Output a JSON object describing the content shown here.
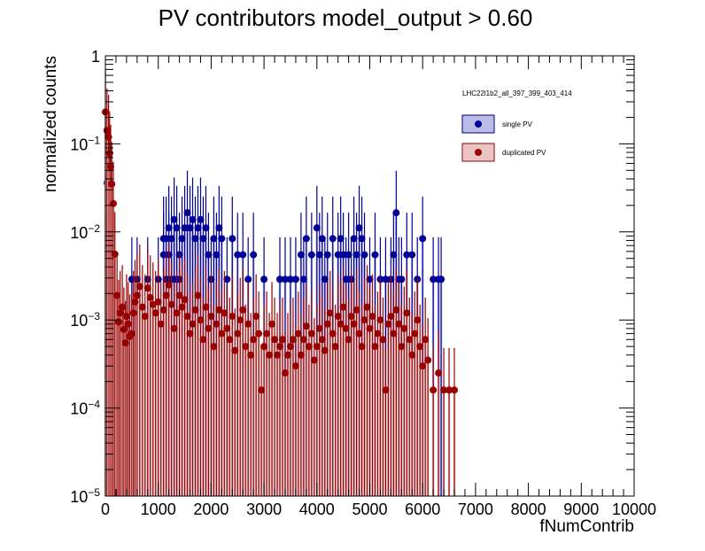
{
  "chart_data": {
    "type": "scatter",
    "title": "PV contributors  model_output > 0.60",
    "xlabel": "fNumContrib",
    "ylabel": "normalized counts",
    "xlim": [
      0,
      10000
    ],
    "ylim": [
      1e-05,
      1
    ],
    "yscale": "log",
    "grid": false,
    "legend_position": "top-right",
    "legend_header": "LHC22l1b2_all_397_399_403_414",
    "x_ticks": [
      "0",
      "1000",
      "2000",
      "3000",
      "4000",
      "5000",
      "6000",
      "7000",
      "8000",
      "9000",
      "10000"
    ],
    "y_ticks": [
      {
        "value": 1e-05,
        "base": "10",
        "exp": "−5"
      },
      {
        "value": 0.0001,
        "base": "10",
        "exp": "−4"
      },
      {
        "value": 0.001,
        "base": "10",
        "exp": "−3"
      },
      {
        "value": 0.01,
        "base": "10",
        "exp": "−2"
      },
      {
        "value": 0.1,
        "base": "10",
        "exp": "−1"
      },
      {
        "value": 1,
        "base": "1",
        "exp": ""
      }
    ],
    "series": [
      {
        "name": "single PV",
        "color": "#000099",
        "fill": "#bcbde6",
        "points": [
          [
            30,
            0.036
          ],
          [
            60,
            0.0055
          ],
          [
            80,
            0.0055
          ],
          [
            100,
            0.0029
          ],
          [
            130,
            0.0029
          ],
          [
            500,
            0.0029
          ],
          [
            600,
            0.0029
          ],
          [
            800,
            0.0029
          ],
          [
            1000,
            0.0029
          ],
          [
            1100,
            0.0055
          ],
          [
            1150,
            0.0029
          ],
          [
            1200,
            0.0055
          ],
          [
            1250,
            0.0029
          ],
          [
            1300,
            0.0029
          ],
          [
            1350,
            0.0029
          ],
          [
            1400,
            0.0029
          ],
          [
            1100,
            0.0084
          ],
          [
            1150,
            0.0084
          ],
          [
            1200,
            0.0111
          ],
          [
            1250,
            0.0084
          ],
          [
            1300,
            0.0138
          ],
          [
            1350,
            0.0111
          ],
          [
            1400,
            0.0055
          ],
          [
            1450,
            0.0084
          ],
          [
            1500,
            0.0111
          ],
          [
            1550,
            0.0165
          ],
          [
            1600,
            0.0111
          ],
          [
            1650,
            0.0138
          ],
          [
            1700,
            0.0084
          ],
          [
            1750,
            0.0111
          ],
          [
            1800,
            0.0138
          ],
          [
            1850,
            0.0084
          ],
          [
            1900,
            0.0111
          ],
          [
            1950,
            0.0055
          ],
          [
            2000,
            0.0029
          ],
          [
            2050,
            0.0084
          ],
          [
            2100,
            0.0055
          ],
          [
            2150,
            0.0111
          ],
          [
            2200,
            0.0084
          ],
          [
            2300,
            0.0029
          ],
          [
            2400,
            0.0084
          ],
          [
            2500,
            0.0055
          ],
          [
            2600,
            0.0055
          ],
          [
            2700,
            0.0029
          ],
          [
            2800,
            0.0055
          ],
          [
            3000,
            0.0029
          ],
          [
            3300,
            0.0029
          ],
          [
            3400,
            0.0029
          ],
          [
            3500,
            0.0029
          ],
          [
            3600,
            0.0029
          ],
          [
            3700,
            0.0055
          ],
          [
            3750,
            0.0029
          ],
          [
            3800,
            0.0084
          ],
          [
            3900,
            0.0055
          ],
          [
            4000,
            0.0111
          ],
          [
            4050,
            0.0055
          ],
          [
            4100,
            0.0084
          ],
          [
            4150,
            0.0029
          ],
          [
            4200,
            0.0055
          ],
          [
            4300,
            0.0084
          ],
          [
            4400,
            0.0055
          ],
          [
            4450,
            0.0084
          ],
          [
            4500,
            0.0055
          ],
          [
            4550,
            0.0029
          ],
          [
            4600,
            0.0055
          ],
          [
            4650,
            0.0029
          ],
          [
            4700,
            0.0084
          ],
          [
            4750,
            0.0055
          ],
          [
            4800,
            0.0111
          ],
          [
            4850,
            0.0084
          ],
          [
            4900,
            0.0055
          ],
          [
            5000,
            0.0029
          ],
          [
            5100,
            0.0055
          ],
          [
            5200,
            0.0029
          ],
          [
            5300,
            0.0029
          ],
          [
            5400,
            0.0029
          ],
          [
            5450,
            0.0055
          ],
          [
            5500,
            0.0165
          ],
          [
            5550,
            0.0029
          ],
          [
            5600,
            0.0029
          ],
          [
            5700,
            0.0055
          ],
          [
            5800,
            0.0055
          ],
          [
            5900,
            0.0029
          ],
          [
            6000,
            0.0084
          ],
          [
            6200,
            0.0029
          ],
          [
            6300,
            0.0029
          ],
          [
            6350,
            0.0029
          ]
        ]
      },
      {
        "name": "duplicated PV",
        "color": "#990000",
        "fill": "#e8c4c4",
        "points": [
          [
            0,
            0.23
          ],
          [
            30,
            0.142
          ],
          [
            60,
            0.12
          ],
          [
            80,
            0.078
          ],
          [
            100,
            0.055
          ],
          [
            120,
            0.035
          ],
          [
            150,
            0.021
          ],
          [
            180,
            0.0056
          ],
          [
            220,
            0.0019
          ],
          [
            250,
            0.00095
          ],
          [
            280,
            0.0012
          ],
          [
            320,
            0.0014
          ],
          [
            350,
            0.00078
          ],
          [
            380,
            0.00055
          ],
          [
            400,
            0.0011
          ],
          [
            430,
            0.0009
          ],
          [
            460,
            0.00065
          ],
          [
            500,
            0.0007
          ],
          [
            530,
            0.0012
          ],
          [
            560,
            0.0016
          ],
          [
            600,
            0.0019
          ],
          [
            650,
            0.0024
          ],
          [
            700,
            0.0014
          ],
          [
            750,
            0.0011
          ],
          [
            800,
            0.0023
          ],
          [
            850,
            0.0018
          ],
          [
            900,
            0.0015
          ],
          [
            950,
            0.0012
          ],
          [
            1000,
            0.0016
          ],
          [
            1050,
            0.0009
          ],
          [
            1100,
            0.0013
          ],
          [
            1150,
            0.0019
          ],
          [
            1200,
            0.0025
          ],
          [
            1250,
            0.0015
          ],
          [
            1300,
            0.0008
          ],
          [
            1350,
            0.0012
          ],
          [
            1400,
            0.0019
          ],
          [
            1450,
            0.0014
          ],
          [
            1500,
            0.0017
          ],
          [
            1550,
            0.0011
          ],
          [
            1600,
            0.0007
          ],
          [
            1650,
            0.0009
          ],
          [
            1700,
            0.0013
          ],
          [
            1750,
            0.0019
          ],
          [
            1800,
            0.001
          ],
          [
            1850,
            0.0006
          ],
          [
            1900,
            0.0014
          ],
          [
            1950,
            0.0008
          ],
          [
            2000,
            0.0011
          ],
          [
            2050,
            0.0005
          ],
          [
            2100,
            0.0009
          ],
          [
            2150,
            0.0013
          ],
          [
            2200,
            0.0007
          ],
          [
            2250,
            0.0012
          ],
          [
            2300,
            0.0008
          ],
          [
            2350,
            0.0006
          ],
          [
            2400,
            0.0011
          ],
          [
            2450,
            0.00045
          ],
          [
            2500,
            0.0007
          ],
          [
            2550,
            0.001
          ],
          [
            2600,
            0.0013
          ],
          [
            2650,
            0.0005
          ],
          [
            2700,
            0.0009
          ],
          [
            2750,
            0.0004
          ],
          [
            2800,
            0.0006
          ],
          [
            2850,
            0.0011
          ],
          [
            2900,
            0.0007
          ],
          [
            2950,
            0.00016
          ],
          [
            3000,
            0.0005
          ],
          [
            3050,
            0.0007
          ],
          [
            3100,
            0.0004
          ],
          [
            3150,
            0.0009
          ],
          [
            3200,
            0.0006
          ],
          [
            3250,
            0.0004
          ],
          [
            3300,
            0.0005
          ],
          [
            3350,
            0.0006
          ],
          [
            3400,
            0.00025
          ],
          [
            3450,
            0.0004
          ],
          [
            3500,
            0.0005
          ],
          [
            3550,
            0.0006
          ],
          [
            3600,
            0.0003
          ],
          [
            3650,
            0.0007
          ],
          [
            3700,
            0.0004
          ],
          [
            3750,
            0.0006
          ],
          [
            3800,
            0.00085
          ],
          [
            3850,
            0.0005
          ],
          [
            3900,
            0.0007
          ],
          [
            3950,
            0.00035
          ],
          [
            4000,
            0.0005
          ],
          [
            4050,
            0.0008
          ],
          [
            4100,
            0.0006
          ],
          [
            4150,
            0.00045
          ],
          [
            4200,
            0.0009
          ],
          [
            4250,
            0.0012
          ],
          [
            4300,
            0.0007
          ],
          [
            4350,
            0.0005
          ],
          [
            4400,
            0.0011
          ],
          [
            4450,
            0.0009
          ],
          [
            4500,
            0.0014
          ],
          [
            4550,
            0.0008
          ],
          [
            4600,
            0.0006
          ],
          [
            4650,
            0.0011
          ],
          [
            4700,
            0.0009
          ],
          [
            4750,
            0.0013
          ],
          [
            4800,
            0.0007
          ],
          [
            4850,
            0.0005
          ],
          [
            4900,
            0.001
          ],
          [
            4950,
            0.0014
          ],
          [
            5000,
            0.0008
          ],
          [
            5050,
            0.0011
          ],
          [
            5100,
            0.0005
          ],
          [
            5150,
            0.0007
          ],
          [
            5200,
            0.001
          ],
          [
            5250,
            0.0006
          ],
          [
            5300,
            0.00016
          ],
          [
            5350,
            0.0009
          ],
          [
            5400,
            0.0011
          ],
          [
            5450,
            0.0007
          ],
          [
            5500,
            0.0013
          ],
          [
            5550,
            0.0009
          ],
          [
            5600,
            0.0005
          ],
          [
            5650,
            0.0008
          ],
          [
            5700,
            0.0012
          ],
          [
            5750,
            0.0006
          ],
          [
            5800,
            0.0004
          ],
          [
            5850,
            0.0007
          ],
          [
            5900,
            0.001
          ],
          [
            5950,
            0.0005
          ],
          [
            6000,
            0.0003
          ],
          [
            6050,
            0.0006
          ],
          [
            6100,
            0.00035
          ],
          [
            6200,
            0.00016
          ],
          [
            6300,
            0.00025
          ],
          [
            6400,
            0.00016
          ],
          [
            6500,
            0.00016
          ],
          [
            6600,
            0.00016
          ]
        ]
      }
    ]
  }
}
